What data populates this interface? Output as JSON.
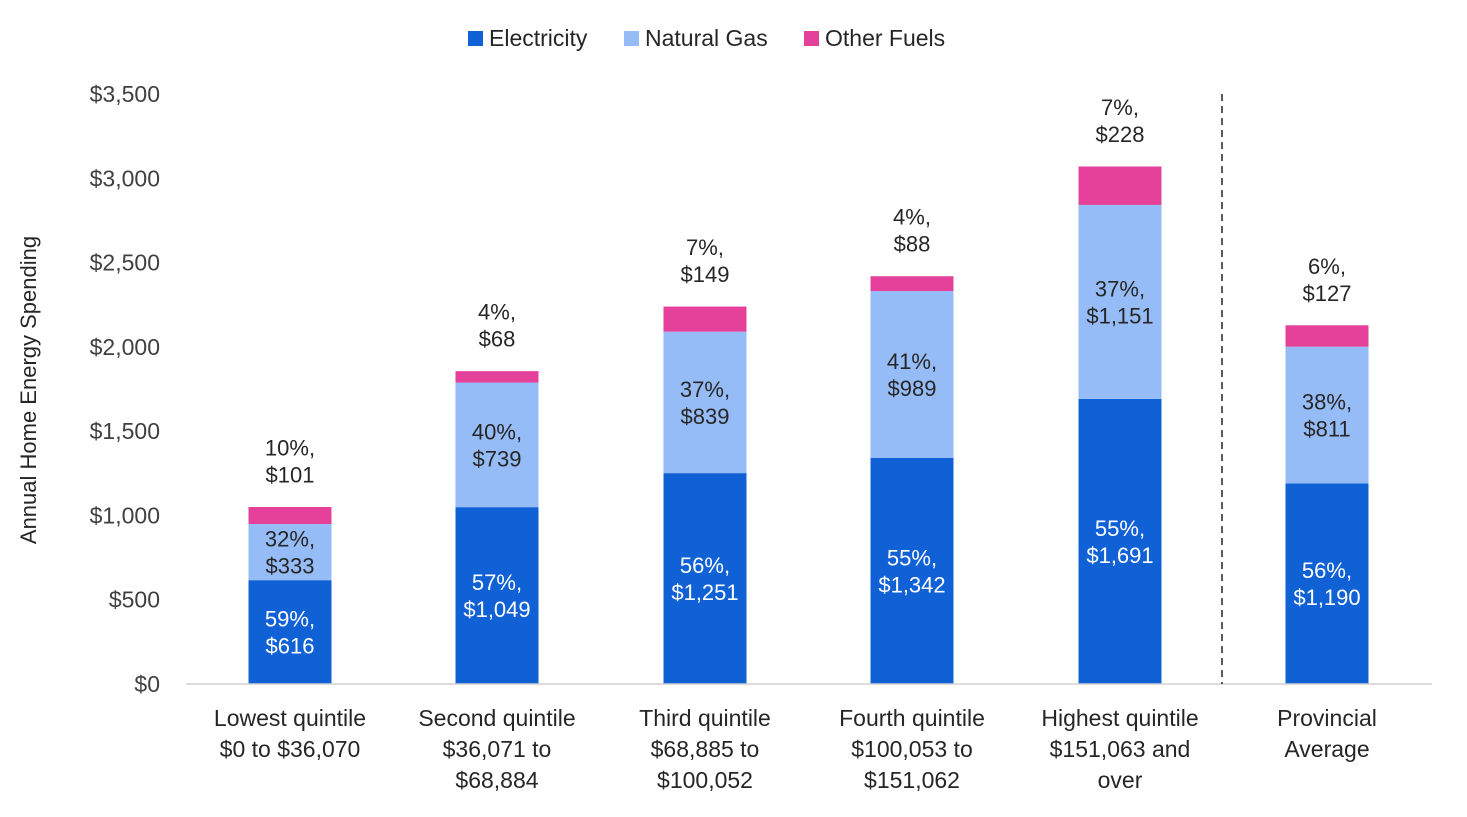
{
  "chart_data": {
    "type": "bar",
    "stacked": true,
    "title": "",
    "xlabel": "",
    "ylabel": "Annual Home Energy Spending",
    "ylim": [
      0,
      3500
    ],
    "yticks": [
      0,
      500,
      1000,
      1500,
      2000,
      2500,
      3000,
      3500
    ],
    "ytick_labels": [
      "$0",
      "$500",
      "$1,000",
      "$1,500",
      "$2,000",
      "$2,500",
      "$3,000",
      "$3,500"
    ],
    "grid": false,
    "legend_position": "top-center",
    "separator_before_category": 5,
    "categories": [
      [
        "Lowest quintile",
        "$0 to $36,070"
      ],
      [
        "Second quintile",
        "$36,071 to",
        "$68,884"
      ],
      [
        "Third quintile",
        "$68,885 to",
        "$100,052"
      ],
      [
        "Fourth quintile",
        "$100,053 to",
        "$151,062"
      ],
      [
        "Highest quintile",
        "$151,063 and",
        "over"
      ],
      [
        "Provincial",
        "Average"
      ]
    ],
    "series": [
      {
        "name": "Electricity",
        "color": "#1060d6",
        "label_color": "#ffffff",
        "values": [
          616,
          1049,
          1251,
          1342,
          1691,
          1190
        ],
        "labels": [
          [
            "59%,",
            "$616"
          ],
          [
            "57%,",
            "$1,049"
          ],
          [
            "56%,",
            "$1,251"
          ],
          [
            "55%,",
            "$1,342"
          ],
          [
            "55%,",
            "$1,691"
          ],
          [
            "56%,",
            "$1,190"
          ]
        ]
      },
      {
        "name": "Natural Gas",
        "color": "#96bcf7",
        "label_color": "#262626",
        "values": [
          333,
          739,
          839,
          989,
          1151,
          811
        ],
        "labels": [
          [
            "32%,",
            "$333"
          ],
          [
            "40%,",
            "$739"
          ],
          [
            "37%,",
            "$839"
          ],
          [
            "41%,",
            "$989"
          ],
          [
            "37%,",
            "$1,151"
          ],
          [
            "38%,",
            "$811"
          ]
        ]
      },
      {
        "name": "Other Fuels",
        "color": "#e5409a",
        "label_color": "#262626",
        "values": [
          101,
          68,
          149,
          88,
          228,
          127
        ],
        "labels": [
          [
            "10%,",
            "$101"
          ],
          [
            "4%,",
            "$68"
          ],
          [
            "7%,",
            "$149"
          ],
          [
            "4%,",
            "$88"
          ],
          [
            "7%,",
            "$228"
          ],
          [
            "6%,",
            "$127"
          ]
        ]
      }
    ]
  }
}
